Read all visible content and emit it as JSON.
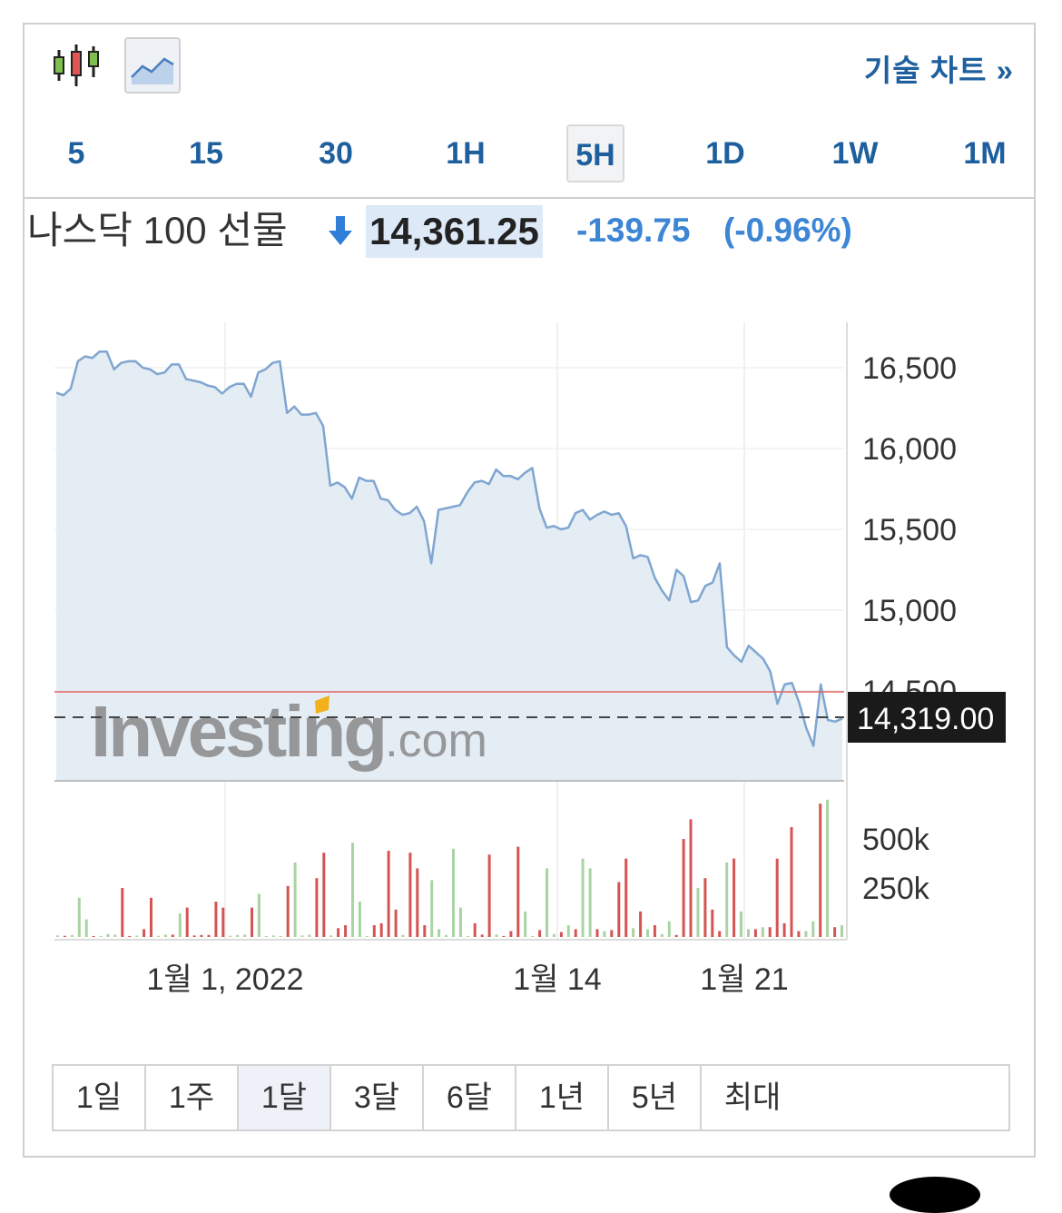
{
  "toolbar": {
    "tech_chart_label": "기술 차트 »",
    "timeframes": [
      "5",
      "15",
      "30",
      "1H",
      "5H",
      "1D",
      "1W",
      "1M"
    ],
    "active_timeframe": "5H"
  },
  "quote": {
    "name": "나스닥 100 선물",
    "price": "14,361.25",
    "change": "-139.75",
    "change_pct": "(-0.96%)",
    "direction": "down",
    "up_color": "#3d86d6",
    "down_color": "#3d86d6"
  },
  "watermark": "Investing.com",
  "chart_data": {
    "type": "area",
    "price_axis": {
      "ticks": [
        16500,
        16000,
        15500,
        15000,
        14500
      ],
      "tick_labels": [
        "16,500",
        "16,000",
        "15,500",
        "15,000",
        "14,500"
      ]
    },
    "volume_axis": {
      "ticks": [
        500000,
        250000
      ],
      "tick_labels": [
        "500k",
        "250k"
      ]
    },
    "x_tick_labels": [
      "1월 1, 2022",
      "1월 14",
      "1월 21"
    ],
    "current_price_label": "14,319.00",
    "current_price": 14319,
    "reference_line": 14500,
    "series": [
      {
        "values": [
          16345,
          16330,
          16370,
          16540,
          16570,
          16560,
          16600,
          16600,
          16490,
          16530,
          16540,
          16540,
          16500,
          16490,
          16460,
          16470,
          16520,
          16520,
          16430,
          16420,
          16410,
          16390,
          16380,
          16340,
          16380,
          16400,
          16400,
          16320,
          16470,
          16490,
          16530,
          16540,
          16220,
          16260,
          16210,
          16210,
          16220,
          16140,
          15770,
          15790,
          15760,
          15690,
          15820,
          15800,
          15800,
          15690,
          15680,
          15620,
          15590,
          15600,
          15640,
          15550,
          15290,
          15620,
          15630,
          15640,
          15650,
          15730,
          15790,
          15800,
          15780,
          15870,
          15830,
          15830,
          15810,
          15850,
          15880,
          15630,
          15510,
          15520,
          15500,
          15510,
          15600,
          15620,
          15560,
          15590,
          15610,
          15590,
          15600,
          15520,
          15320,
          15340,
          15330,
          15200,
          15120,
          15060,
          15250,
          15210,
          15050,
          15060,
          15150,
          15170,
          15290,
          14770,
          14720,
          14680,
          14780,
          14740,
          14700,
          14620,
          14420,
          14540,
          14550,
          14430,
          14270,
          14160,
          14540,
          14320,
          14310,
          14330
        ]
      }
    ],
    "volume": [
      {
        "v": 8000,
        "d": "up"
      },
      {
        "v": 6000,
        "d": "down"
      },
      {
        "v": 10000,
        "d": "up"
      },
      {
        "v": 200000,
        "d": "up"
      },
      {
        "v": 90000,
        "d": "up"
      },
      {
        "v": 5000,
        "d": "down"
      },
      {
        "v": 5000,
        "d": "up"
      },
      {
        "v": 15000,
        "d": "up"
      },
      {
        "v": 12000,
        "d": "up"
      },
      {
        "v": 250000,
        "d": "down"
      },
      {
        "v": 5000,
        "d": "down"
      },
      {
        "v": 7000,
        "d": "up"
      },
      {
        "v": 40000,
        "d": "down"
      },
      {
        "v": 200000,
        "d": "down"
      },
      {
        "v": 6000,
        "d": "up"
      },
      {
        "v": 12000,
        "d": "up"
      },
      {
        "v": 12000,
        "d": "down"
      },
      {
        "v": 120000,
        "d": "up"
      },
      {
        "v": 150000,
        "d": "down"
      },
      {
        "v": 8000,
        "d": "down"
      },
      {
        "v": 10000,
        "d": "down"
      },
      {
        "v": 10000,
        "d": "down"
      },
      {
        "v": 180000,
        "d": "down"
      },
      {
        "v": 150000,
        "d": "down"
      },
      {
        "v": 6000,
        "d": "up"
      },
      {
        "v": 10000,
        "d": "up"
      },
      {
        "v": 12000,
        "d": "up"
      },
      {
        "v": 150000,
        "d": "down"
      },
      {
        "v": 220000,
        "d": "up"
      },
      {
        "v": 5000,
        "d": "up"
      },
      {
        "v": 8000,
        "d": "up"
      },
      {
        "v": 5000,
        "d": "up"
      },
      {
        "v": 260000,
        "d": "down"
      },
      {
        "v": 380000,
        "d": "up"
      },
      {
        "v": 8000,
        "d": "up"
      },
      {
        "v": 12000,
        "d": "up"
      },
      {
        "v": 300000,
        "d": "down"
      },
      {
        "v": 430000,
        "d": "down"
      },
      {
        "v": 8000,
        "d": "up"
      },
      {
        "v": 45000,
        "d": "down"
      },
      {
        "v": 60000,
        "d": "down"
      },
      {
        "v": 480000,
        "d": "up"
      },
      {
        "v": 180000,
        "d": "up"
      },
      {
        "v": 5000,
        "d": "up"
      },
      {
        "v": 60000,
        "d": "down"
      },
      {
        "v": 70000,
        "d": "down"
      },
      {
        "v": 440000,
        "d": "down"
      },
      {
        "v": 140000,
        "d": "down"
      },
      {
        "v": 10000,
        "d": "up"
      },
      {
        "v": 430000,
        "d": "down"
      },
      {
        "v": 350000,
        "d": "down"
      },
      {
        "v": 60000,
        "d": "down"
      },
      {
        "v": 290000,
        "d": "up"
      },
      {
        "v": 40000,
        "d": "up"
      },
      {
        "v": 10000,
        "d": "up"
      },
      {
        "v": 450000,
        "d": "up"
      },
      {
        "v": 150000,
        "d": "up"
      },
      {
        "v": 5000,
        "d": "up"
      },
      {
        "v": 70000,
        "d": "down"
      },
      {
        "v": 12000,
        "d": "down"
      },
      {
        "v": 420000,
        "d": "down"
      },
      {
        "v": 12000,
        "d": "up"
      },
      {
        "v": 5000,
        "d": "down"
      },
      {
        "v": 30000,
        "d": "down"
      },
      {
        "v": 460000,
        "d": "down"
      },
      {
        "v": 130000,
        "d": "up"
      },
      {
        "v": 5000,
        "d": "up"
      },
      {
        "v": 35000,
        "d": "down"
      },
      {
        "v": 350000,
        "d": "up"
      },
      {
        "v": 15000,
        "d": "up"
      },
      {
        "v": 25000,
        "d": "down"
      },
      {
        "v": 60000,
        "d": "up"
      },
      {
        "v": 40000,
        "d": "down"
      },
      {
        "v": 400000,
        "d": "up"
      },
      {
        "v": 350000,
        "d": "up"
      },
      {
        "v": 40000,
        "d": "down"
      },
      {
        "v": 30000,
        "d": "up"
      },
      {
        "v": 35000,
        "d": "down"
      },
      {
        "v": 280000,
        "d": "down"
      },
      {
        "v": 400000,
        "d": "down"
      },
      {
        "v": 45000,
        "d": "up"
      },
      {
        "v": 130000,
        "d": "down"
      },
      {
        "v": 40000,
        "d": "up"
      },
      {
        "v": 60000,
        "d": "down"
      },
      {
        "v": 15000,
        "d": "up"
      },
      {
        "v": 80000,
        "d": "up"
      },
      {
        "v": 10000,
        "d": "down"
      },
      {
        "v": 500000,
        "d": "down"
      },
      {
        "v": 600000,
        "d": "down"
      },
      {
        "v": 250000,
        "d": "up"
      },
      {
        "v": 300000,
        "d": "down"
      },
      {
        "v": 140000,
        "d": "down"
      },
      {
        "v": 30000,
        "d": "down"
      },
      {
        "v": 380000,
        "d": "up"
      },
      {
        "v": 400000,
        "d": "down"
      },
      {
        "v": 130000,
        "d": "up"
      },
      {
        "v": 40000,
        "d": "up"
      },
      {
        "v": 40000,
        "d": "down"
      },
      {
        "v": 50000,
        "d": "up"
      },
      {
        "v": 50000,
        "d": "down"
      },
      {
        "v": 400000,
        "d": "down"
      },
      {
        "v": 70000,
        "d": "down"
      },
      {
        "v": 560000,
        "d": "down"
      },
      {
        "v": 30000,
        "d": "down"
      },
      {
        "v": 30000,
        "d": "up"
      },
      {
        "v": 80000,
        "d": "up"
      },
      {
        "v": 680000,
        "d": "down"
      },
      {
        "v": 700000,
        "d": "up"
      },
      {
        "v": 50000,
        "d": "down"
      },
      {
        "v": 60000,
        "d": "up"
      }
    ],
    "colors": {
      "line": "#7fa6d1",
      "area": "#e4ecf4",
      "volume_up": "#a9d3a4",
      "volume_down": "#d55454",
      "reference_line": "#e36464"
    }
  },
  "range_buttons": [
    "1일",
    "1주",
    "1달",
    "3달",
    "6달",
    "1년",
    "5년",
    "최대"
  ],
  "active_range": "1달"
}
